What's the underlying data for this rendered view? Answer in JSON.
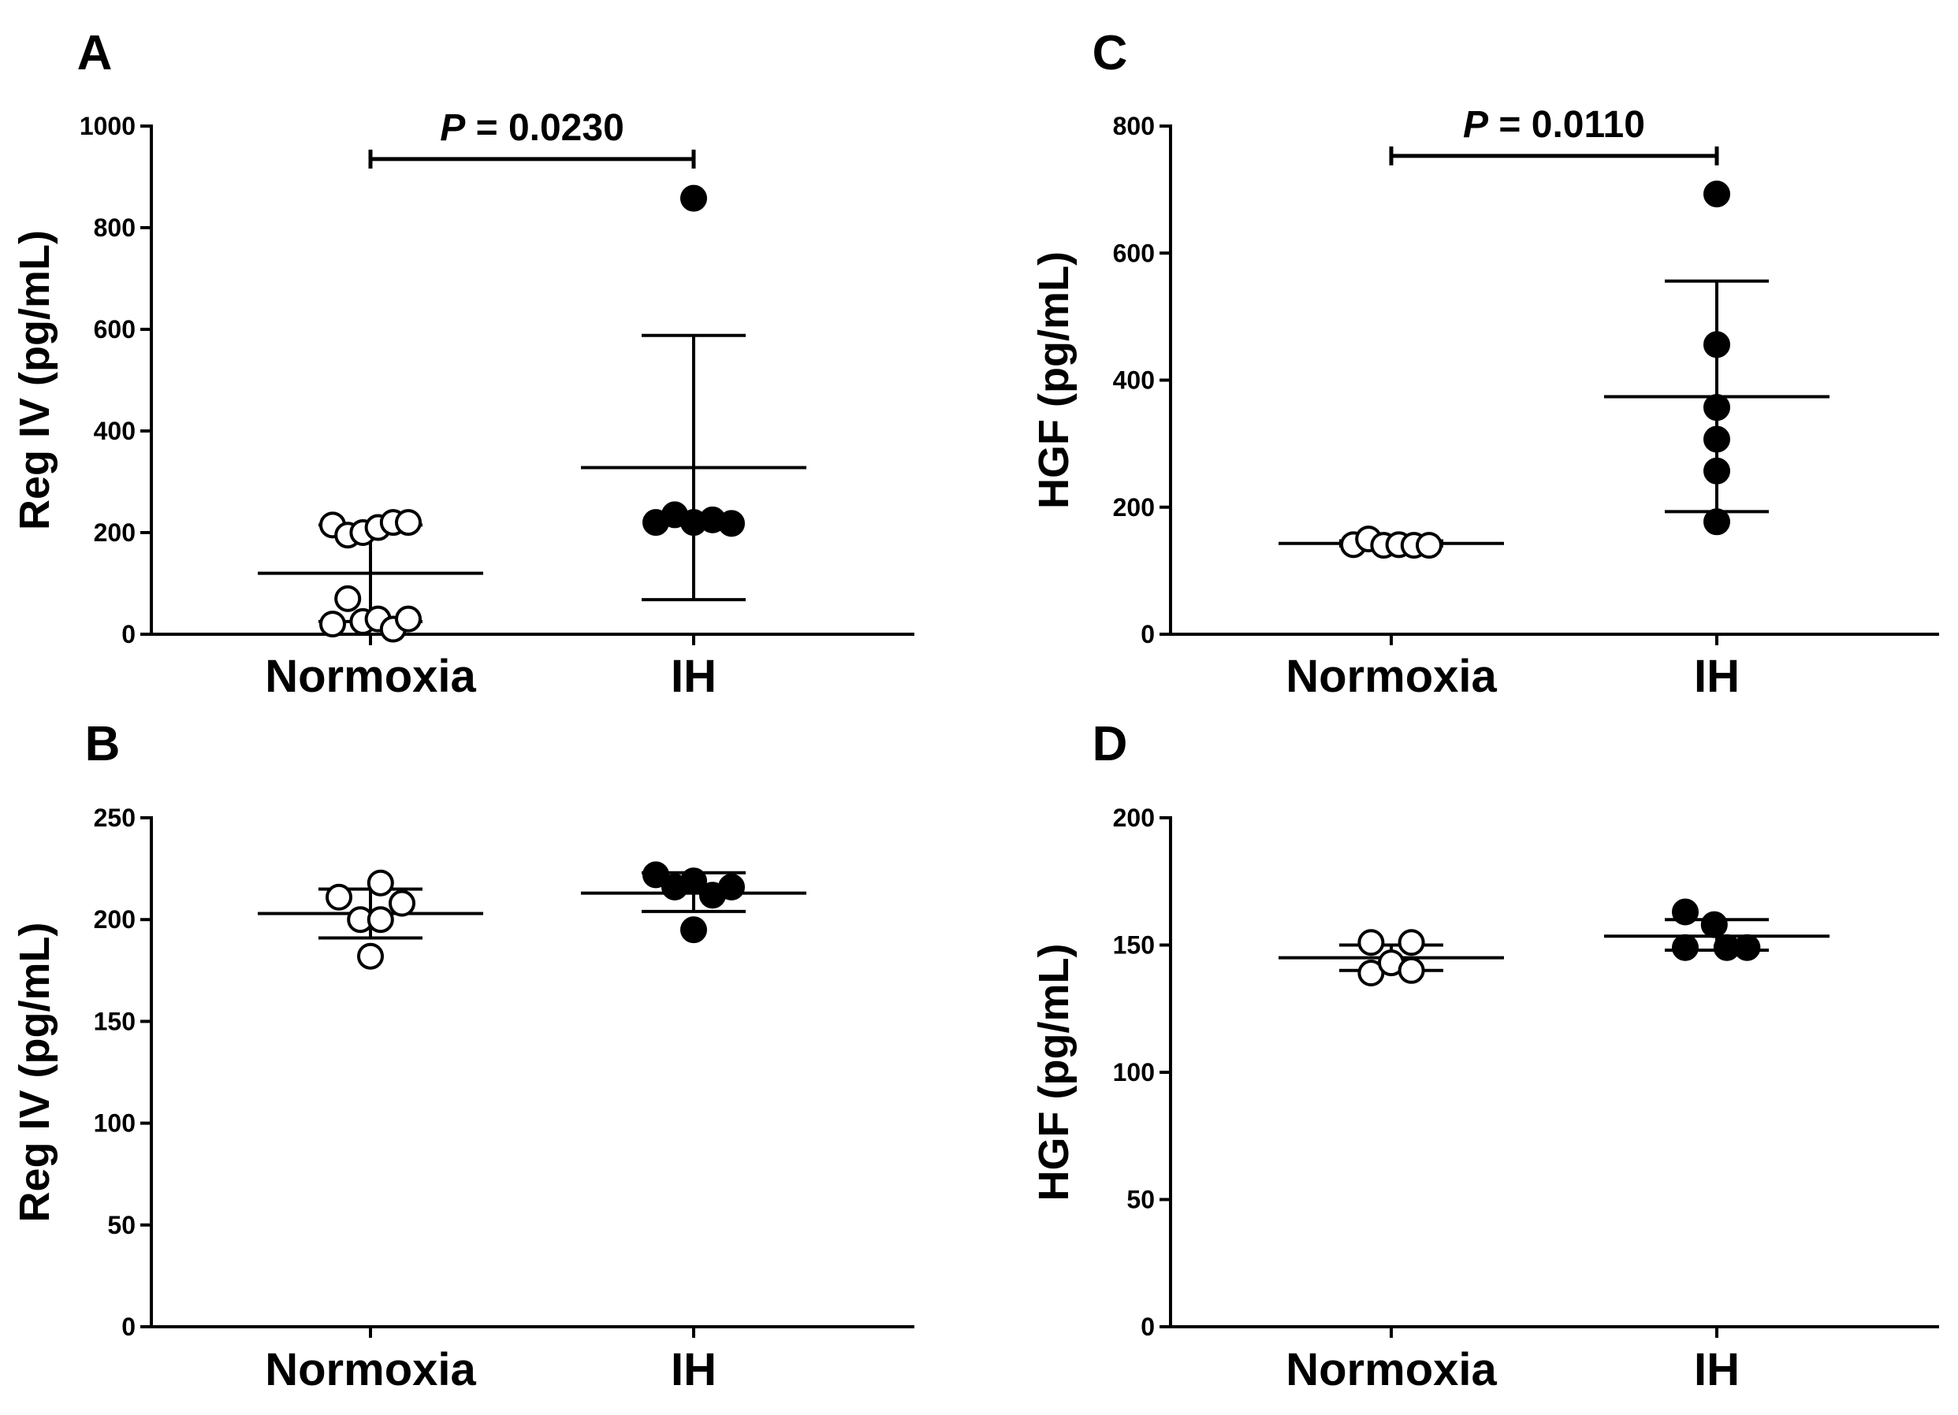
{
  "chart_data": [
    {
      "type": "scatter",
      "panel_label": "A",
      "title": "",
      "ylabel": "Reg IV (pg/mL)",
      "ylim": [
        0,
        1000
      ],
      "yticks": [
        0,
        200,
        400,
        600,
        800,
        1000
      ],
      "categories": [
        "Normoxia",
        "IH"
      ],
      "series": [
        {
          "name": "Normoxia",
          "marker": "open",
          "points": [
            {
              "dx": -0.3,
              "y": 215
            },
            {
              "dx": -0.18,
              "y": 195
            },
            {
              "dx": -0.06,
              "y": 200
            },
            {
              "dx": 0.06,
              "y": 210
            },
            {
              "dx": 0.18,
              "y": 220
            },
            {
              "dx": 0.3,
              "y": 220
            },
            {
              "dx": -0.3,
              "y": 20
            },
            {
              "dx": -0.18,
              "y": 70
            },
            {
              "dx": -0.06,
              "y": 25
            },
            {
              "dx": 0.06,
              "y": 30
            },
            {
              "dx": 0.18,
              "y": 10
            },
            {
              "dx": 0.3,
              "y": 30
            }
          ],
          "mean": 120,
          "sd_low": 25,
          "sd_high": 215
        },
        {
          "name": "IH",
          "marker": "filled",
          "points": [
            {
              "dx": -0.3,
              "y": 220
            },
            {
              "dx": -0.15,
              "y": 235
            },
            {
              "dx": 0.0,
              "y": 220
            },
            {
              "dx": 0.0,
              "y": 858
            },
            {
              "dx": 0.15,
              "y": 225
            },
            {
              "dx": 0.3,
              "y": 218
            }
          ],
          "mean": 328,
          "sd_low": 68,
          "sd_high": 588
        }
      ],
      "significance": {
        "p_label": "P",
        "p_value": "= 0.0230",
        "y": 935
      }
    },
    {
      "type": "scatter",
      "panel_label": "B",
      "title": "",
      "ylabel": "Reg IV (pg/mL)",
      "ylim": [
        0,
        250
      ],
      "yticks": [
        0,
        50,
        100,
        150,
        200,
        250
      ],
      "categories": [
        "Normoxia",
        "IH"
      ],
      "series": [
        {
          "name": "Normoxia",
          "marker": "open",
          "points": [
            {
              "dx": -0.25,
              "y": 211
            },
            {
              "dx": -0.08,
              "y": 200
            },
            {
              "dx": 0.08,
              "y": 218
            },
            {
              "dx": 0.08,
              "y": 200
            },
            {
              "dx": 0.25,
              "y": 208
            },
            {
              "dx": 0.0,
              "y": 182
            }
          ],
          "mean": 203,
          "sd_low": 191,
          "sd_high": 215
        },
        {
          "name": "IH",
          "marker": "filled",
          "points": [
            {
              "dx": -0.3,
              "y": 222
            },
            {
              "dx": -0.15,
              "y": 216
            },
            {
              "dx": 0.0,
              "y": 219
            },
            {
              "dx": 0.15,
              "y": 212
            },
            {
              "dx": 0.3,
              "y": 216
            },
            {
              "dx": 0.0,
              "y": 195
            }
          ],
          "mean": 213,
          "sd_low": 204,
          "sd_high": 223
        }
      ]
    },
    {
      "type": "scatter",
      "panel_label": "C",
      "title": "",
      "ylabel": "HGF (pg/mL)",
      "ylim": [
        0,
        800
      ],
      "yticks": [
        0,
        200,
        400,
        600,
        800
      ],
      "categories": [
        "Normoxia",
        "IH"
      ],
      "series": [
        {
          "name": "Normoxia",
          "marker": "open",
          "points": [
            {
              "dx": -0.3,
              "y": 141
            },
            {
              "dx": -0.18,
              "y": 150
            },
            {
              "dx": -0.06,
              "y": 140
            },
            {
              "dx": 0.06,
              "y": 141
            },
            {
              "dx": 0.18,
              "y": 140
            },
            {
              "dx": 0.3,
              "y": 140
            }
          ],
          "mean": 143,
          "sd_low": 139,
          "sd_high": 147
        },
        {
          "name": "IH",
          "marker": "filled",
          "points": [
            {
              "dx": 0.0,
              "y": 693
            },
            {
              "dx": 0.0,
              "y": 456
            },
            {
              "dx": 0.0,
              "y": 357
            },
            {
              "dx": 0.0,
              "y": 307
            },
            {
              "dx": 0.0,
              "y": 257
            },
            {
              "dx": 0.0,
              "y": 177
            }
          ],
          "mean": 374,
          "sd_low": 193,
          "sd_high": 556
        }
      ],
      "significance": {
        "p_label": "P",
        "p_value": "= 0.0110",
        "y": 753
      }
    },
    {
      "type": "scatter",
      "panel_label": "D",
      "title": "",
      "ylabel": "HGF (pg/mL)",
      "ylim": [
        0,
        200
      ],
      "yticks": [
        0,
        50,
        100,
        150,
        200
      ],
      "categories": [
        "Normoxia",
        "IH"
      ],
      "series": [
        {
          "name": "Normoxia",
          "marker": "open",
          "points": [
            {
              "dx": -0.16,
              "y": 151
            },
            {
              "dx": 0.16,
              "y": 151
            },
            {
              "dx": -0.16,
              "y": 139
            },
            {
              "dx": 0.0,
              "y": 143
            },
            {
              "dx": 0.16,
              "y": 140
            }
          ],
          "mean": 145,
          "sd_low": 140,
          "sd_high": 150
        },
        {
          "name": "IH",
          "marker": "filled",
          "points": [
            {
              "dx": -0.25,
              "y": 163
            },
            {
              "dx": -0.02,
              "y": 158
            },
            {
              "dx": -0.25,
              "y": 149
            },
            {
              "dx": 0.08,
              "y": 149
            },
            {
              "dx": 0.24,
              "y": 149
            }
          ],
          "mean": 153.5,
          "sd_low": 148,
          "sd_high": 160
        }
      ]
    }
  ]
}
